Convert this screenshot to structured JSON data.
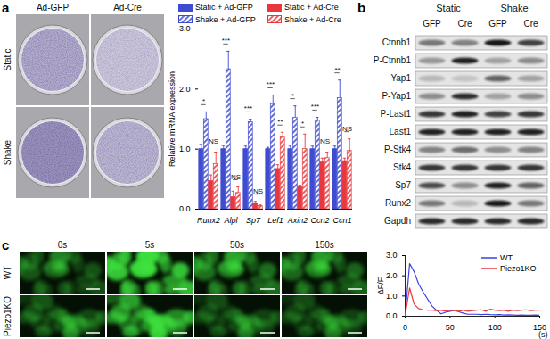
{
  "panel_labels": [
    "a",
    "b",
    "c"
  ],
  "staining": {
    "columns": [
      "Ad-GFP",
      "Ad-Cre"
    ],
    "rows": [
      {
        "name": "Static",
        "stain_density": [
          0.6,
          0.35
        ]
      },
      {
        "name": "Shake",
        "stain_density": [
          0.85,
          0.5
        ]
      }
    ]
  },
  "blot": {
    "groups": [
      "Static",
      "Shake"
    ],
    "lanes": [
      "GFP",
      "Cre",
      "GFP",
      "Cre"
    ],
    "rows": [
      {
        "name": "Ctnnb1",
        "band_intensity": [
          0.5,
          0.45,
          0.95,
          0.75
        ]
      },
      {
        "name": "P-Ctnnb1",
        "band_intensity": [
          0.35,
          0.9,
          0.3,
          0.4
        ]
      },
      {
        "name": "Yap1",
        "band_intensity": [
          0.2,
          0.15,
          0.6,
          0.3
        ]
      },
      {
        "name": "P-Yap1",
        "band_intensity": [
          0.4,
          0.85,
          0.3,
          0.4
        ]
      },
      {
        "name": "P-Last1",
        "band_intensity": [
          0.8,
          0.9,
          0.75,
          0.8
        ]
      },
      {
        "name": "Last1",
        "band_intensity": [
          0.9,
          0.9,
          0.9,
          0.9
        ]
      },
      {
        "name": "P-Stk4",
        "band_intensity": [
          0.45,
          0.55,
          0.4,
          0.45
        ]
      },
      {
        "name": "Stk4",
        "band_intensity": [
          0.8,
          0.8,
          0.8,
          0.8
        ]
      },
      {
        "name": "Sp7",
        "band_intensity": [
          0.7,
          0.4,
          0.9,
          0.6
        ]
      },
      {
        "name": "Runx2",
        "band_intensity": [
          0.5,
          0.2,
          0.95,
          0.5
        ]
      },
      {
        "name": "Gapdh",
        "band_intensity": [
          0.85,
          0.85,
          0.85,
          0.85
        ]
      }
    ]
  },
  "imaging": {
    "times": [
      "0s",
      "5s",
      "50s",
      "150s"
    ],
    "rows": [
      {
        "name": "WT",
        "brightness": [
          0.35,
          0.95,
          0.5,
          0.45
        ]
      },
      {
        "name": "Piezo1KO",
        "brightness": [
          0.35,
          0.75,
          0.3,
          0.3
        ]
      }
    ]
  },
  "chart_data": [
    {
      "type": "bar",
      "y_label": "Relative mRNA expression",
      "categories": [
        "Runx2",
        "Alpl",
        "Sp7",
        "Lef1",
        "Axin2",
        "Ccn2",
        "Ccn1"
      ],
      "series": [
        {
          "name": "Static + Ad-GFP",
          "color": "#3f4bd0",
          "line_style": "solid",
          "values": [
            1,
            1,
            1,
            1,
            1,
            1,
            1
          ],
          "errors": [
            0.08,
            0.06,
            0.05,
            0.03,
            0.05,
            0.05,
            0.05
          ]
        },
        {
          "name": "Shake + Ad-GFP",
          "color": "#3f4bd0",
          "line_style": "hatched",
          "values": [
            1.5,
            2.33,
            1.45,
            1.75,
            1.52,
            1.48,
            1.85
          ],
          "errors": [
            0.12,
            0.3,
            0.05,
            0.15,
            0.2,
            0.05,
            0.3
          ]
        },
        {
          "name": "Static + Ad-Cre",
          "color": "#e8383d",
          "line_style": "solid",
          "values": [
            0.47,
            0.2,
            0.1,
            0.67,
            0.37,
            0.78,
            0.8
          ],
          "errors": [
            0.1,
            0.1,
            0.03,
            0.07,
            0.03,
            0.07,
            0.05
          ]
        },
        {
          "name": "Shake + Ad-Cre",
          "color": "#e8383d",
          "line_style": "hatched",
          "values": [
            0.75,
            0.27,
            0.05,
            1.2,
            1.0,
            0.85,
            0.97
          ],
          "errors": [
            0.2,
            0.1,
            0.02,
            0.08,
            0.25,
            0.1,
            0.2
          ]
        }
      ],
      "annotations": [
        {
          "category": "Runx2",
          "series": [
            "Static + Ad-GFP",
            "Shake + Ad-GFP"
          ],
          "text": "*"
        },
        {
          "category": "Runx2",
          "series": [
            "Static + Ad-Cre",
            "Shake + Ad-Cre"
          ],
          "text": "NS"
        },
        {
          "category": "Alpl",
          "series": [
            "Static + Ad-GFP",
            "Shake + Ad-GFP"
          ],
          "text": "***"
        },
        {
          "category": "Alpl",
          "series": [
            "Static + Ad-Cre",
            "Shake + Ad-Cre"
          ],
          "text": "NS"
        },
        {
          "category": "Sp7",
          "series": [
            "Static + Ad-GFP",
            "Shake + Ad-GFP"
          ],
          "text": "***"
        },
        {
          "category": "Sp7",
          "series": [
            "Static + Ad-Cre",
            "Shake + Ad-Cre"
          ],
          "text": "NS"
        },
        {
          "category": "Lef1",
          "series": [
            "Static + Ad-GFP",
            "Shake + Ad-GFP"
          ],
          "text": "***"
        },
        {
          "category": "Lef1",
          "series": [
            "Static + Ad-Cre",
            "Shake + Ad-Cre"
          ],
          "text": "**"
        },
        {
          "category": "Axin2",
          "series": [
            "Static + Ad-GFP",
            "Shake + Ad-GFP"
          ],
          "text": "*"
        },
        {
          "category": "Axin2",
          "series": [
            "Static + Ad-Cre",
            "Shake + Ad-Cre"
          ],
          "text": "*"
        },
        {
          "category": "Ccn2",
          "series": [
            "Static + Ad-GFP",
            "Shake + Ad-GFP"
          ],
          "text": "***"
        },
        {
          "category": "Ccn2",
          "series": [
            "Static + Ad-Cre",
            "Shake + Ad-Cre"
          ],
          "text": "NS"
        },
        {
          "category": "Ccn1",
          "series": [
            "Static + Ad-GFP",
            "Shake + Ad-GFP"
          ],
          "text": "**"
        },
        {
          "category": "Ccn1",
          "series": [
            "Static + Ad-Cre",
            "Shake + Ad-Cre"
          ],
          "text": "NS"
        }
      ],
      "ylim": [
        0,
        3
      ],
      "yticks": [
        0,
        1,
        2,
        3
      ],
      "legend": "top"
    },
    {
      "type": "line",
      "x_label": "(s)",
      "y_label": "ΔF/F",
      "x": [
        0,
        5,
        10,
        15,
        20,
        25,
        30,
        35,
        40,
        45,
        50,
        55,
        60,
        65,
        70,
        75,
        80,
        85,
        90,
        95,
        100,
        105,
        110,
        115,
        120,
        125,
        130,
        135,
        140,
        145,
        150
      ],
      "series": [
        {
          "name": "WT",
          "color": "#3b3fe0",
          "values": [
            0.05,
            2.6,
            2.2,
            1.6,
            1.2,
            0.85,
            0.5,
            0.3,
            0.12,
            0.2,
            0.25,
            0.3,
            0.22,
            0.15,
            0.1,
            0.1,
            0.1,
            0.08,
            0.1,
            0.08,
            0.07,
            0.08,
            0.06,
            0.07,
            0.06,
            0.05,
            0.06,
            0.05,
            0.05,
            0.06,
            0.05
          ]
        },
        {
          "name": "Piezo1KO",
          "color": "#e8383d",
          "values": [
            0.05,
            1.4,
            0.6,
            0.38,
            0.32,
            0.3,
            0.3,
            0.28,
            0.3,
            0.25,
            0.3,
            0.28,
            0.25,
            0.3,
            0.25,
            0.28,
            0.3,
            0.32,
            0.25,
            0.35,
            0.3,
            0.28,
            0.3,
            0.25,
            0.3,
            0.28,
            0.3,
            0.32,
            0.28,
            0.3,
            0.3
          ]
        }
      ],
      "xlim": [
        0,
        150
      ],
      "xticks": [
        0,
        50,
        100,
        150
      ],
      "ylim": [
        0,
        3
      ],
      "yticks": [
        0,
        1,
        2,
        3
      ],
      "legend": "top-right"
    }
  ]
}
